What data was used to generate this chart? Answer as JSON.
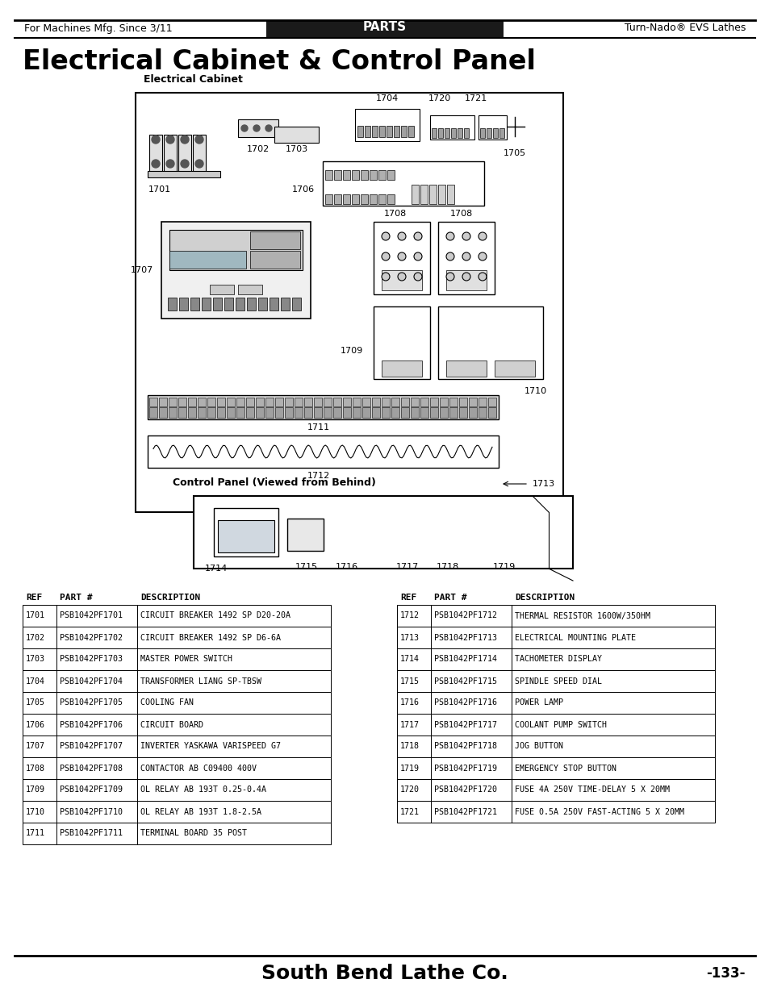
{
  "header_left": "For Machines Mfg. Since 3/11",
  "header_center": "PARTS",
  "header_right": "Turn-Nado® EVS Lathes",
  "page_title": "Electrical Cabinet & Control Panel",
  "footer_company": "South Bend Lathe Co.",
  "footer_page": "-133-",
  "diagram_label_electrical": "Electrical Cabinet",
  "diagram_label_control": "Control Panel (Viewed from Behind)",
  "table_headers_left": [
    "REF",
    "PART #",
    "DESCRIPTION"
  ],
  "table_headers_right": [
    "REF",
    "PART #",
    "DESCRIPTION"
  ],
  "table_left": [
    [
      "1701",
      "PSB1042PF1701",
      "CIRCUIT BREAKER 1492 SP D20-20A"
    ],
    [
      "1702",
      "PSB1042PF1702",
      "CIRCUIT BREAKER 1492 SP D6-6A"
    ],
    [
      "1703",
      "PSB1042PF1703",
      "MASTER POWER SWITCH"
    ],
    [
      "1704",
      "PSB1042PF1704",
      "TRANSFORMER LIANG SP-TBSW"
    ],
    [
      "1705",
      "PSB1042PF1705",
      "COOLING FAN"
    ],
    [
      "1706",
      "PSB1042PF1706",
      "CIRCUIT BOARD"
    ],
    [
      "1707",
      "PSB1042PF1707",
      "INVERTER YASKAWA VARISPEED G7"
    ],
    [
      "1708",
      "PSB1042PF1708",
      "CONTACTOR AB C09400 400V"
    ],
    [
      "1709",
      "PSB1042PF1709",
      "OL RELAY AB 193T 0.25-0.4A"
    ],
    [
      "1710",
      "PSB1042PF1710",
      "OL RELAY AB 193T 1.8-2.5A"
    ],
    [
      "1711",
      "PSB1042PF1711",
      "TERMINAL BOARD 35 POST"
    ]
  ],
  "table_right": [
    [
      "1712",
      "PSB1042PF1712",
      "THERMAL RESISTOR 1600W/350HM"
    ],
    [
      "1713",
      "PSB1042PF1713",
      "ELECTRICAL MOUNTING PLATE"
    ],
    [
      "1714",
      "PSB1042PF1714",
      "TACHOMETER DISPLAY"
    ],
    [
      "1715",
      "PSB1042PF1715",
      "SPINDLE SPEED DIAL"
    ],
    [
      "1716",
      "PSB1042PF1716",
      "POWER LAMP"
    ],
    [
      "1717",
      "PSB1042PF1717",
      "COOLANT PUMP SWITCH"
    ],
    [
      "1718",
      "PSB1042PF1718",
      "JOG BUTTON"
    ],
    [
      "1719",
      "PSB1042PF1719",
      "EMERGENCY STOP BUTTON"
    ],
    [
      "1720",
      "PSB1042PF1720",
      "FUSE 4A 250V TIME-DELAY 5 X 20MM"
    ],
    [
      "1721",
      "PSB1042PF1721",
      "FUSE 0.5A 250V FAST-ACTING 5 X 20MM"
    ]
  ],
  "bg_color": "#ffffff",
  "header_bg": "#1a1a1a",
  "header_text_color": "#ffffff",
  "border_color": "#000000",
  "table_font_size": 7.2,
  "title_font_size": 22,
  "header_font_size": 9
}
